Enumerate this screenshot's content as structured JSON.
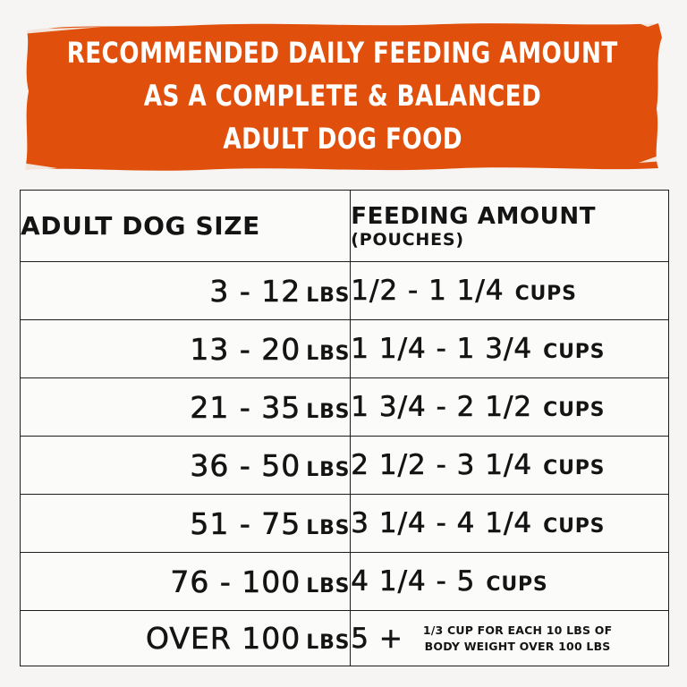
{
  "banner": {
    "color": "#e0500c",
    "lines": [
      "RECOMMENDED DAILY FEEDING AMOUNT",
      "AS A COMPLETE & BALANCED",
      "ADULT DOG FOOD"
    ]
  },
  "table": {
    "header": {
      "size": "ADULT DOG SIZE",
      "amount": "FEEDING AMOUNT",
      "amount_sub": "(POUCHES)"
    },
    "rows": [
      {
        "size": "3 - 12",
        "size_unit": "LBS",
        "amount": "1/2 - 1 1/4",
        "amount_unit": "CUPS"
      },
      {
        "size": "13 - 20",
        "size_unit": "LBS",
        "amount": "1 1/4 - 1 3/4",
        "amount_unit": "CUPS"
      },
      {
        "size": "21 - 35",
        "size_unit": "LBS",
        "amount": "1 3/4 - 2 1/2",
        "amount_unit": "CUPS"
      },
      {
        "size": "36 - 50",
        "size_unit": "LBS",
        "amount": "2 1/2 - 3 1/4",
        "amount_unit": "CUPS"
      },
      {
        "size": "51 - 75",
        "size_unit": "LBS",
        "amount": "3 1/4 - 4 1/4",
        "amount_unit": "CUPS"
      },
      {
        "size": "76 - 100",
        "size_unit": "LBS",
        "amount": "4 1/4 - 5",
        "amount_unit": "CUPS"
      }
    ],
    "last_row": {
      "size": "OVER 100",
      "size_unit": "LBS",
      "amount": "5 +",
      "note_line1": "1/3 CUP FOR EACH 10 LBS OF",
      "note_line2": "BODY WEIGHT OVER 100 LBS"
    }
  }
}
